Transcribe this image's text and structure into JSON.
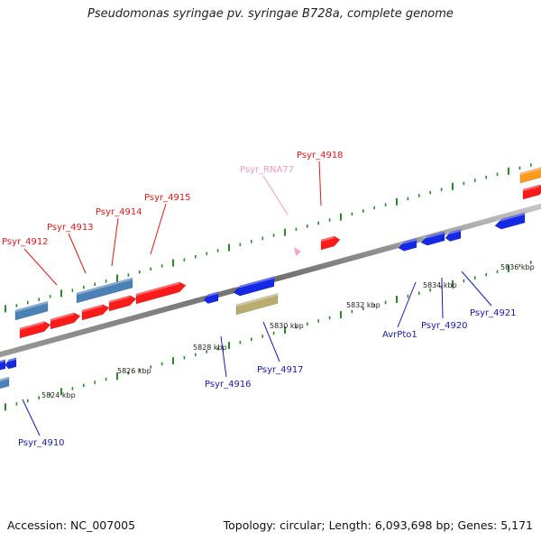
{
  "title": "Pseudomonas syringae pv. syringae B728a, complete genome",
  "footer": {
    "accession": "Accession: NC_007005",
    "summary": "Topology: circular; Length: 6,093,698 bp; Genes: 5,171"
  },
  "colors": {
    "backbone": "#7a7a7a",
    "tick": "#2a8a2a",
    "red": "#ff1a1a",
    "steel": "#4a82b8",
    "blue": "#1428e6",
    "khaki": "#b8ad6e",
    "pink": "#f7a6c8",
    "orange": "#ff9a1a",
    "label_red": "#dd1a1a",
    "label_blue": "#1a1aa8",
    "label_pink": "#f09cc0"
  },
  "scale_labels": [
    "5824 kbp",
    "5826 kbp",
    "5828 kbp",
    "5830 kbp",
    "5832 kbp",
    "5834 kbp",
    "5836 kbp"
  ],
  "gene_labels": [
    {
      "text": "Psyr_4912",
      "color": "label_red"
    },
    {
      "text": "Psyr_4913",
      "color": "label_red"
    },
    {
      "text": "Psyr_4914",
      "color": "label_red"
    },
    {
      "text": "Psyr_4915",
      "color": "label_red"
    },
    {
      "text": "Psyr_RNA77",
      "color": "label_pink"
    },
    {
      "text": "Psyr_4918",
      "color": "label_red"
    },
    {
      "text": "Psyr_4910",
      "color": "label_blue"
    },
    {
      "text": "Psyr_4916",
      "color": "label_blue"
    },
    {
      "text": "Psyr_4917",
      "color": "label_blue"
    },
    {
      "text": "AvrPto1",
      "color": "label_blue"
    },
    {
      "text": "Psyr_4920",
      "color": "label_blue"
    },
    {
      "text": "Psyr_4921",
      "color": "label_blue"
    }
  ]
}
